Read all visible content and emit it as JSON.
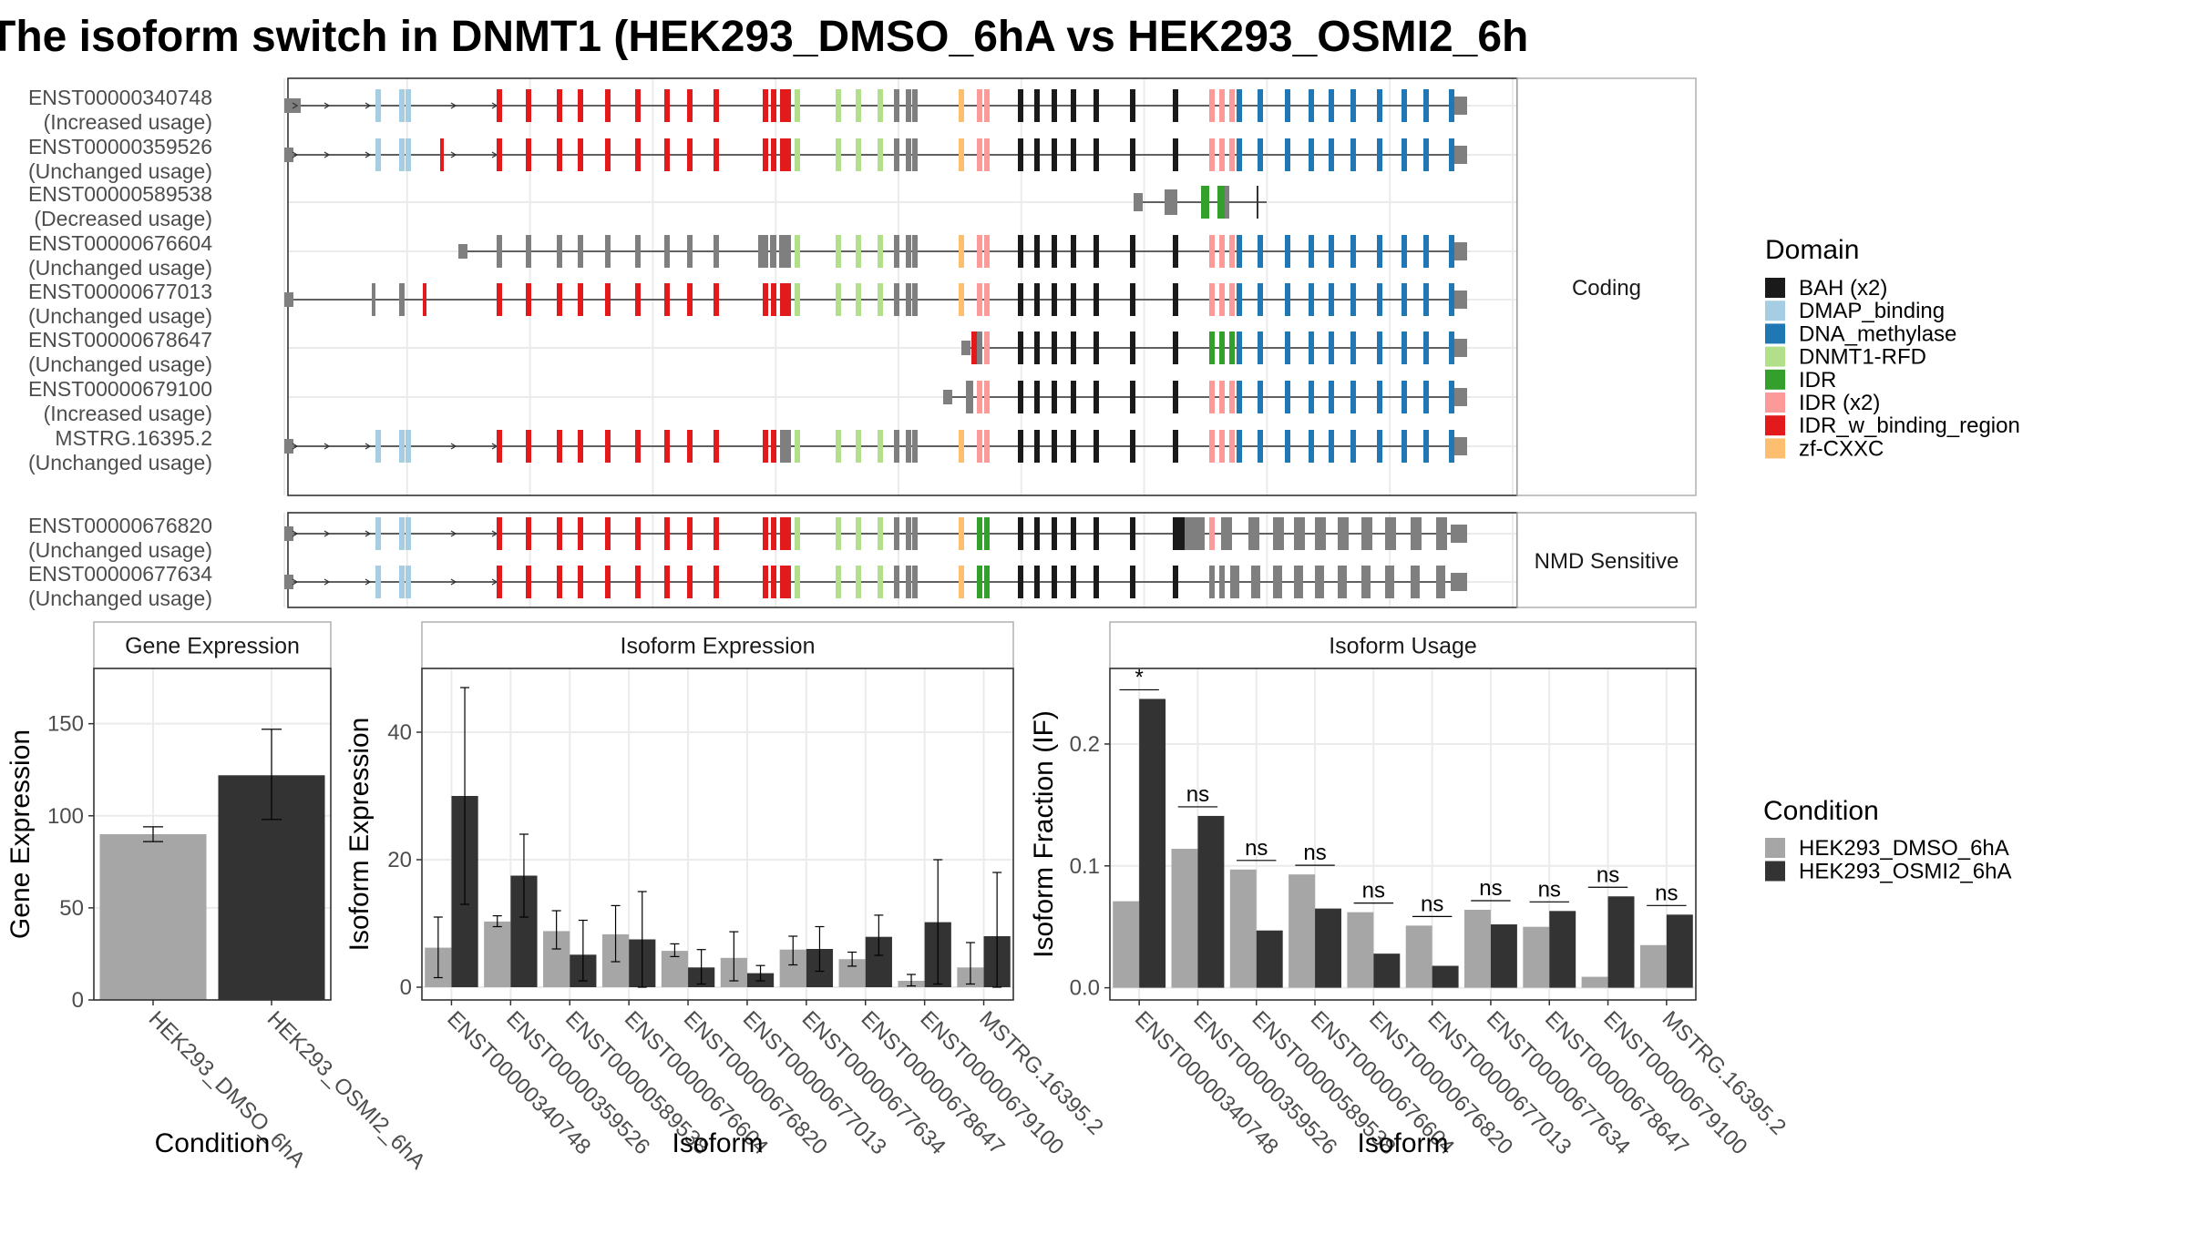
{
  "title": "The isoform switch in DNMT1 (HEK293_DMSO_6hA vs HEK293_OSMI2_6h",
  "structure": {
    "facets": [
      {
        "label": "Coding",
        "isoforms": [
          {
            "id": "ENST00000340748",
            "usage": "(Increased usage)"
          },
          {
            "id": "ENST00000359526",
            "usage": "(Unchanged usage)"
          },
          {
            "id": "ENST00000589538",
            "usage": "(Decreased usage)"
          },
          {
            "id": "ENST00000676604",
            "usage": "(Unchanged usage)"
          },
          {
            "id": "ENST00000677013",
            "usage": "(Unchanged usage)"
          },
          {
            "id": "ENST00000678647",
            "usage": "(Unchanged usage)"
          },
          {
            "id": "ENST00000679100",
            "usage": "(Increased usage)"
          },
          {
            "id": "MSTRG.16395.2",
            "usage": "(Unchanged usage)"
          }
        ]
      },
      {
        "label": "NMD Sensitive",
        "isoforms": [
          {
            "id": "ENST00000676820",
            "usage": "(Unchanged usage)"
          },
          {
            "id": "ENST00000677634",
            "usage": "(Unchanged usage)"
          }
        ]
      }
    ]
  },
  "legend_domain": {
    "title": "Domain",
    "items": [
      {
        "label": "BAH (x2)",
        "color": "#1a1a1a"
      },
      {
        "label": "DMAP_binding",
        "color": "#a6cee3"
      },
      {
        "label": "DNA_methylase",
        "color": "#1f78b4"
      },
      {
        "label": "DNMT1-RFD",
        "color": "#b2df8a"
      },
      {
        "label": "IDR",
        "color": "#33a02c"
      },
      {
        "label": "IDR (x2)",
        "color": "#fb9a99"
      },
      {
        "label": "IDR_w_binding_region",
        "color": "#e31a1c"
      },
      {
        "label": "zf-CXXC",
        "color": "#fdbf6f"
      }
    ]
  },
  "legend_condition": {
    "title": "Condition",
    "items": [
      {
        "label": "HEK293_DMSO_6hA",
        "color": "#a6a6a6"
      },
      {
        "label": "HEK293_OSMI2_6hA",
        "color": "#333333"
      }
    ]
  },
  "chart_data": [
    {
      "type": "bar",
      "title": "Gene Expression",
      "xlabel": "Condition",
      "ylabel": "Gene Expression",
      "categories": [
        "HEK293_DMSO_6hA",
        "HEK293_OSMI2_6hA"
      ],
      "values": [
        90,
        122
      ],
      "error_low": [
        86,
        98
      ],
      "error_high": [
        94,
        147
      ],
      "ylim": [
        0,
        180
      ],
      "yticks": [
        0,
        50,
        100,
        150
      ]
    },
    {
      "type": "bar",
      "title": "Isoform Expression",
      "xlabel": "Isoform",
      "ylabel": "Isoform Expression",
      "categories": [
        "ENST00000340748",
        "ENST00000359526",
        "ENST00000589538",
        "ENST00000676604",
        "ENST00000676820",
        "ENST00000677013",
        "ENST00000677634",
        "ENST00000678647",
        "ENST00000679100",
        "MSTRG.16395.2"
      ],
      "series": [
        {
          "name": "HEK293_DMSO_6hA",
          "values": [
            6.2,
            10.3,
            8.8,
            8.3,
            5.7,
            4.6,
            5.9,
            4.4,
            1.0,
            3.1
          ],
          "error_low": [
            1.5,
            9.5,
            6.0,
            4.0,
            4.8,
            1.0,
            3.5,
            3.3,
            0.2,
            0.5
          ],
          "error_high": [
            11.0,
            11.2,
            12.0,
            12.8,
            6.8,
            8.7,
            8.0,
            5.5,
            2.0,
            7.0
          ]
        },
        {
          "name": "HEK293_OSMI2_6hA",
          "values": [
            30.0,
            17.5,
            5.1,
            7.5,
            3.1,
            2.2,
            6.0,
            7.9,
            10.2,
            8.0
          ],
          "error_low": [
            13.0,
            11.0,
            1.0,
            0.0,
            0.5,
            1.0,
            2.5,
            5.0,
            0.5,
            0.0
          ],
          "error_high": [
            47.0,
            24.0,
            10.5,
            15.0,
            5.9,
            3.4,
            9.5,
            11.3,
            20.0,
            18.0
          ]
        }
      ],
      "ylim": [
        -2,
        50
      ],
      "yticks": [
        0,
        20,
        40
      ]
    },
    {
      "type": "bar",
      "title": "Isoform Usage",
      "xlabel": "Isoform",
      "ylabel": "Isoform Fraction (IF)",
      "categories": [
        "ENST00000340748",
        "ENST00000359526",
        "ENST00000589538",
        "ENST00000676604",
        "ENST00000676820",
        "ENST00000677013",
        "ENST00000677634",
        "ENST00000678647",
        "ENST00000679100",
        "MSTRG.16395.2"
      ],
      "series": [
        {
          "name": "HEK293_DMSO_6hA",
          "values": [
            0.071,
            0.114,
            0.097,
            0.093,
            0.062,
            0.051,
            0.064,
            0.05,
            0.009,
            0.035
          ]
        },
        {
          "name": "HEK293_OSMI2_6hA",
          "values": [
            0.237,
            0.141,
            0.047,
            0.065,
            0.028,
            0.018,
            0.052,
            0.063,
            0.075,
            0.06
          ]
        }
      ],
      "significance": [
        "*",
        "ns",
        "ns",
        "ns",
        "ns",
        "ns",
        "ns",
        "ns",
        "ns",
        "ns"
      ],
      "ylim": [
        -0.01,
        0.262
      ],
      "yticks": [
        0.0,
        0.1,
        0.2
      ],
      "ytick_labels": [
        "0.0",
        "0.1",
        "0.2"
      ]
    }
  ]
}
